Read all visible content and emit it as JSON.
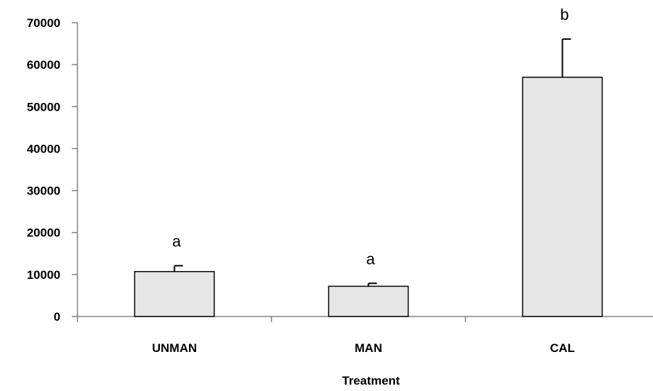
{
  "chart_data": {
    "type": "bar",
    "categories": [
      "UNMAN",
      "MAN",
      "CAL"
    ],
    "values": [
      10700,
      7200,
      57000
    ],
    "error_bars": [
      1400,
      700,
      9100
    ],
    "significance_labels": [
      "a",
      "a",
      "b"
    ],
    "xlabel": "Treatment",
    "ylabel": "",
    "ylim": [
      0,
      70000
    ],
    "yticks": [
      0,
      10000,
      20000,
      30000,
      40000,
      50000,
      60000,
      70000
    ],
    "ytick_labels": [
      "0",
      "10000",
      "20000",
      "30000",
      "40000",
      "50000",
      "60000",
      "70000"
    ],
    "grid": false,
    "colors": {
      "bar_fill": "#e6e6e6",
      "bar_stroke": "#000000",
      "axis": "#808080",
      "error_bar": "#000000"
    }
  }
}
